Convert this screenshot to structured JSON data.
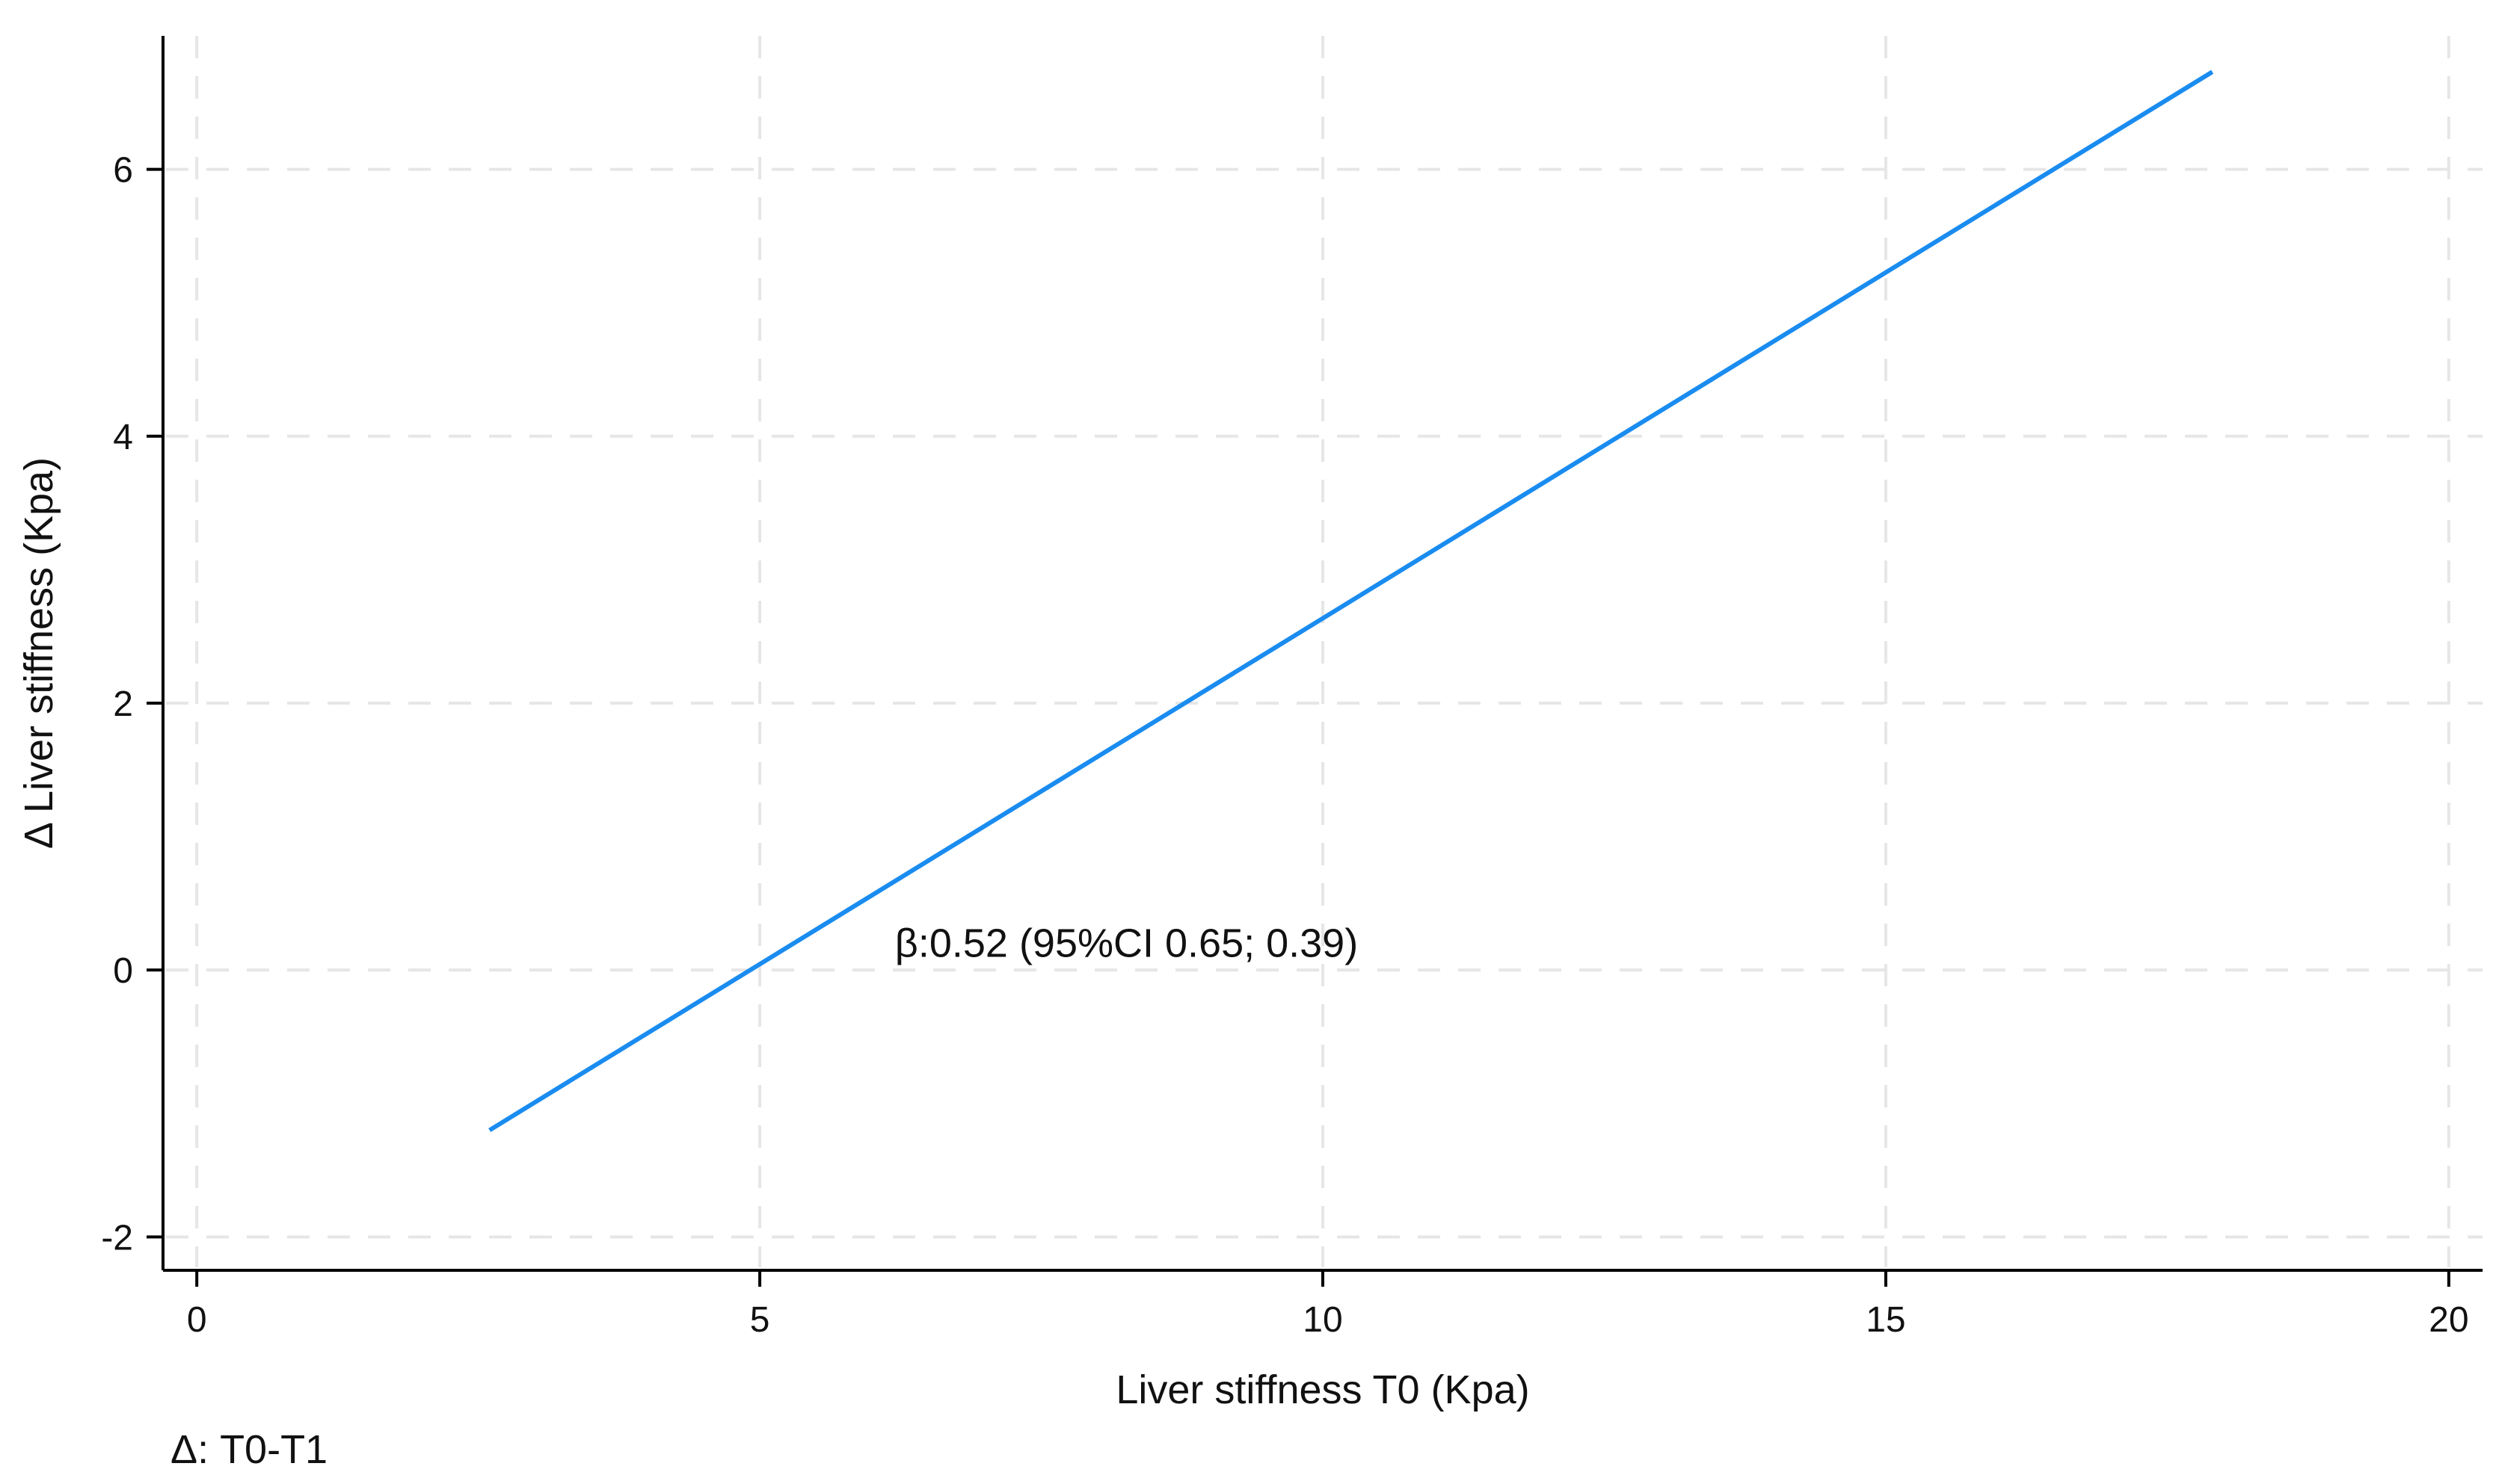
{
  "chart_data": {
    "type": "line",
    "xlabel": "Liver stiffness T0 (Kpa)",
    "ylabel": "Δ Liver stiffness (Kpa)",
    "xlim": [
      -0.3,
      20.3
    ],
    "ylim": [
      -2.25,
      7.0
    ],
    "x_ticks": [
      0,
      5,
      10,
      15,
      20
    ],
    "y_ticks": [
      -2,
      0,
      2,
      4,
      6
    ],
    "grid": true,
    "series": [
      {
        "color": "#1a8cf0",
        "x": [
          2.6,
          17.9
        ],
        "y": [
          -1.2,
          6.73
        ]
      }
    ],
    "annotations": [
      {
        "text": "β:0.52 (95%CI 0.65; 0.39)",
        "x": 6.2,
        "y": 0.1
      }
    ],
    "note": "Δ: T0-T1"
  }
}
